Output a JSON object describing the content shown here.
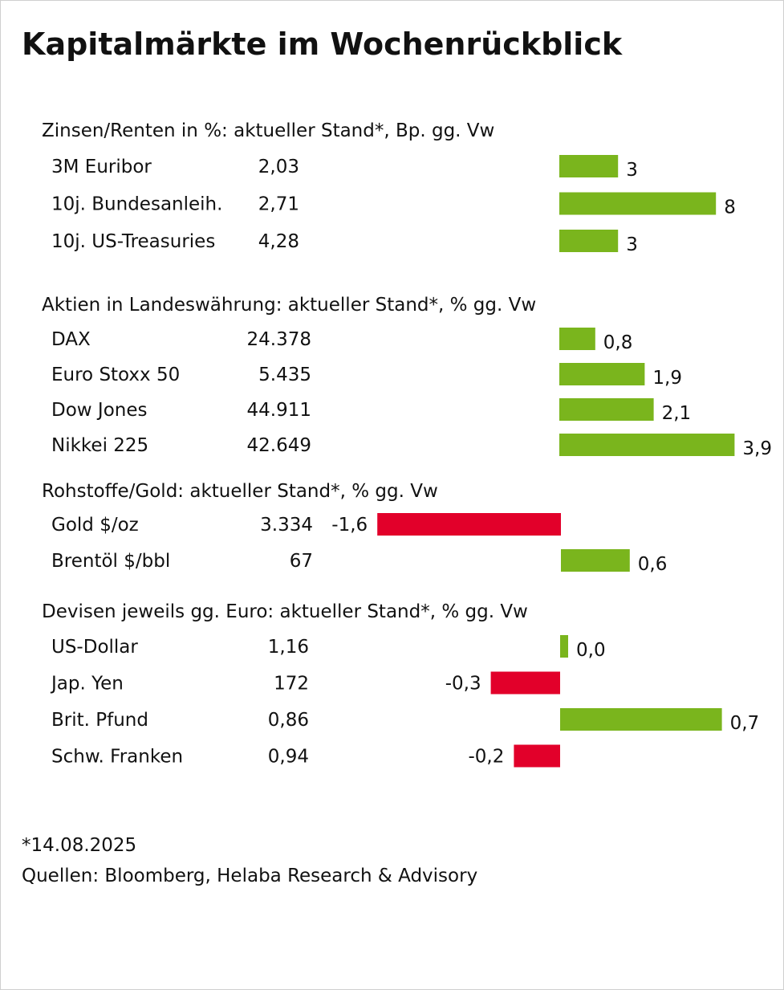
{
  "title": "Kapitalmärkte im Wochenrückblick",
  "footer": {
    "date_note": "*14.08.2025",
    "sources": "Quellen: Bloomberg, Helaba Research & Advisory"
  },
  "colors": {
    "positive": "#7ab51d",
    "negative": "#e2002a",
    "text": "#111111"
  },
  "chart_data": {
    "type": "bar",
    "orientation": "horizontal",
    "title": "Kapitalmärkte im Wochenrückblick",
    "groups": [
      {
        "heading": "Zinsen/Renten in %: aktueller Stand*, Bp. gg. Vw",
        "rows": [
          {
            "label": "3M Euribor",
            "level": "2,03",
            "change": 3,
            "change_label": "3"
          },
          {
            "label": "10j. Bundesanleih.",
            "level": "2,71",
            "change": 8,
            "change_label": "8"
          },
          {
            "label": "10j. US-Treasuries",
            "level": "4,28",
            "change": 3,
            "change_label": "3"
          }
        ]
      },
      {
        "heading": "Aktien in Landeswährung: aktueller Stand*, % gg. Vw",
        "rows": [
          {
            "label": "DAX",
            "level": "24.378",
            "change": 0.8,
            "change_label": "0,8"
          },
          {
            "label": "Euro Stoxx 50",
            "level": "5.435",
            "change": 1.9,
            "change_label": "1,9"
          },
          {
            "label": "Dow Jones",
            "level": "44.911",
            "change": 2.1,
            "change_label": "2,1"
          },
          {
            "label": "Nikkei 225",
            "level": "42.649",
            "change": 3.9,
            "change_label": "3,9"
          }
        ]
      },
      {
        "heading": "Rohstoffe/Gold: aktueller Stand*, % gg. Vw",
        "rows": [
          {
            "label": "Gold $/oz",
            "level": "3.334",
            "change": -1.6,
            "change_label": "-1,6"
          },
          {
            "label": "Brentöl $/bbl",
            "level": "67",
            "change": 0.6,
            "change_label": "0,6"
          }
        ]
      },
      {
        "heading": "Devisen jeweils gg. Euro: aktueller Stand*, % gg. Vw",
        "rows": [
          {
            "label": "US-Dollar",
            "level": "1,16",
            "change": 0.0,
            "change_label": "0,0"
          },
          {
            "label": "Jap. Yen",
            "level": "172",
            "change": -0.3,
            "change_label": "-0,3"
          },
          {
            "label": "Brit. Pfund",
            "level": "0,86",
            "change": 0.7,
            "change_label": "0,7"
          },
          {
            "label": "Schw. Franken",
            "level": "0,94",
            "change": -0.2,
            "change_label": "-0,2"
          }
        ]
      }
    ]
  }
}
